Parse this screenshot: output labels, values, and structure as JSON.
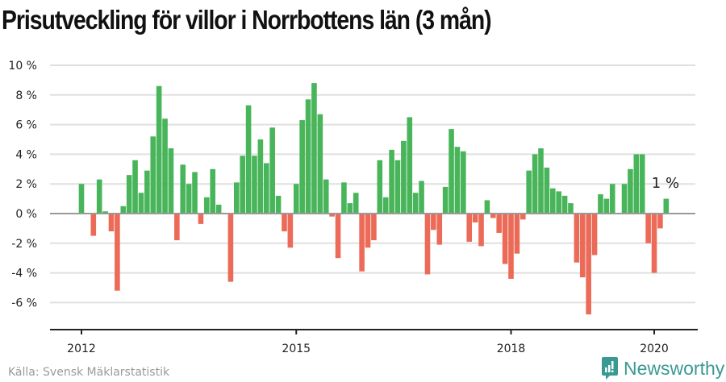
{
  "title": "Prisutveckling för villor i Norrbottens län (3 mån)",
  "source": "Källa: Svensk Mäklarstatistik",
  "brand": {
    "name": "Newsworthy",
    "color": "#3a9a92",
    "icon": "bar-chart-speech-bubble-icon"
  },
  "colors": {
    "positive": "#49b55a",
    "negative": "#ec6b58",
    "grid": "#e0e0e0",
    "zero_line": "#999999",
    "axis": "#222222"
  },
  "chart_data": {
    "type": "bar",
    "title": "Prisutveckling för villor i Norrbottens län (3 mån)",
    "xlabel": "",
    "ylabel": "",
    "unit": "%",
    "ylim": [
      -8,
      10
    ],
    "yticks": [
      -6,
      -4,
      -2,
      0,
      2,
      4,
      6,
      8,
      10
    ],
    "ytick_labels": [
      "-6 %",
      "-4 %",
      "-2 %",
      "0 %",
      "2 %",
      "4 %",
      "6 %",
      "8 %",
      "10 %"
    ],
    "xticks": [
      {
        "label": "2012",
        "month_index": 0
      },
      {
        "label": "2015",
        "month_index": 36
      },
      {
        "label": "2018",
        "month_index": 72
      },
      {
        "label": "2020",
        "month_index": 96
      }
    ],
    "start": "2012-01",
    "frequency": "monthly",
    "grid": true,
    "legend": "none",
    "annotation": {
      "text": "1 %",
      "month_index": 98
    },
    "values": [
      2.0,
      0,
      -1.5,
      2.3,
      0.15,
      -1.2,
      -5.2,
      0.5,
      2.6,
      3.6,
      1.4,
      2.9,
      5.2,
      8.6,
      6.4,
      4.4,
      -1.8,
      3.3,
      2.0,
      2.8,
      -0.7,
      1.1,
      3.0,
      0.6,
      0,
      -4.6,
      2.1,
      3.9,
      7.3,
      3.9,
      5.0,
      3.4,
      5.8,
      1.2,
      -1.2,
      -2.3,
      2.0,
      6.3,
      7.7,
      8.8,
      6.7,
      2.3,
      -0.2,
      -3.0,
      2.1,
      0.7,
      1.4,
      -3.9,
      -2.3,
      -1.8,
      3.6,
      1.1,
      4.3,
      3.6,
      4.9,
      6.5,
      1.4,
      2.2,
      -4.1,
      -1.1,
      -2.1,
      1.8,
      5.7,
      4.5,
      4.2,
      -1.9,
      -0.6,
      -2.2,
      0.9,
      -0.3,
      -1.3,
      -3.4,
      -4.4,
      -2.7,
      -0.4,
      2.9,
      4.0,
      4.4,
      3.1,
      1.7,
      1.5,
      1.2,
      0.7,
      -3.3,
      -4.3,
      -6.8,
      -2.8,
      1.3,
      1.0,
      2.0,
      0,
      2.0,
      3.0,
      4.0,
      4.0,
      -2.0,
      -4.0,
      -1.0,
      1.0
    ]
  }
}
